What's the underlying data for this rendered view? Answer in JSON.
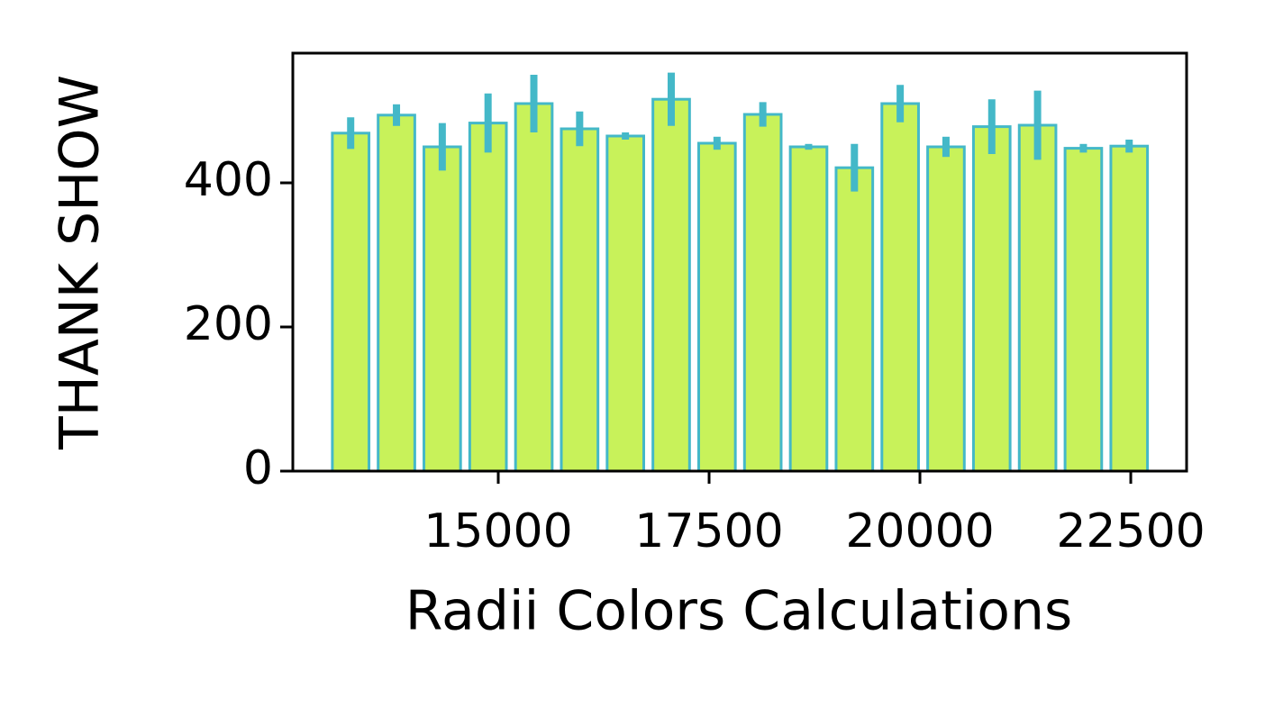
{
  "chart_data": {
    "type": "bar",
    "x_label": "Radii Colors Calculations",
    "y_label": "THANK SHOW",
    "x": [
      13250,
      13793,
      14336,
      14879,
      15422,
      15965,
      16508,
      17051,
      17594,
      18137,
      18680,
      19223,
      19766,
      20309,
      20852,
      21395,
      21938,
      22481
    ],
    "values": [
      469,
      494,
      450,
      483,
      510,
      475,
      465,
      516,
      455,
      495,
      450,
      421,
      510,
      450,
      478,
      480,
      448,
      451
    ],
    "errors": [
      22,
      15,
      33,
      41,
      40,
      24,
      5,
      37,
      9,
      17,
      4,
      33,
      26,
      14,
      38,
      48,
      6,
      9
    ],
    "color": "#c8f25a",
    "edge_color": "#44b8c8",
    "xlim": [
      12564,
      23162
    ],
    "xticks": [
      15000,
      17500,
      20000,
      22500
    ],
    "ylim": [
      0,
      580
    ],
    "yticks": [
      0,
      200,
      400
    ]
  }
}
